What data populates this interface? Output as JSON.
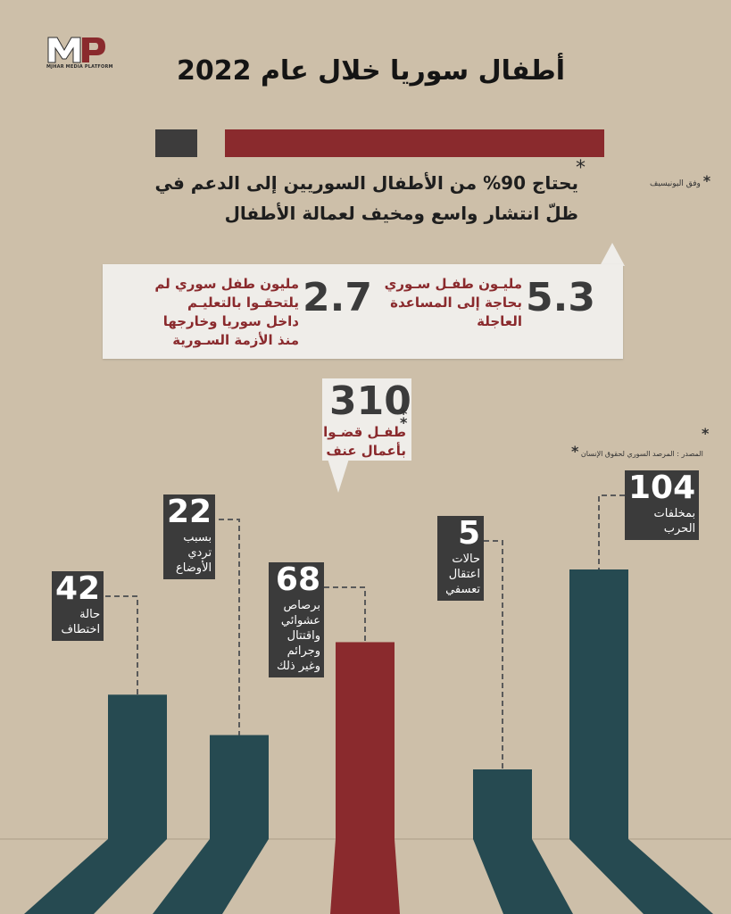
{
  "brand": {
    "logo_text": "MJHAR MEDIA PLATFORM",
    "logo_colors": [
      "#ffffff",
      "#8a2a2d"
    ]
  },
  "title": "أطفال سوريا خلال عام 2022",
  "progress": {
    "value_percent": 90,
    "fill_color": "#8a2a2d",
    "rest_color": "#3d3c3c"
  },
  "lead": {
    "line1": "يحتاج 90% من الأطفال السوريين إلى الدعم في",
    "line2": "ظلّ انتشار واسع ومخيف لعمالة الأطفال",
    "star": "*"
  },
  "notes": {
    "unicef": "وفق اليونيسيف",
    "source": "المصدر : المرصد السوري لحقوق الإنسان",
    "star": "*"
  },
  "stats": {
    "need_aid": {
      "value": "5.3",
      "text_lines": [
        "مليـون طفـل سـوري",
        "بحاجة إلى المساعدة",
        "العاجلة"
      ]
    },
    "no_school": {
      "value": "2.7",
      "text_lines": [
        "مليون طفل سوري لم",
        "يلتحقـوا بالتعليـم",
        "داخل سوريا وخارجها",
        "منذ الأزمة السـورية"
      ]
    }
  },
  "killed": {
    "value": "310",
    "text_lines": [
      "طفـل قضـوا",
      "بأعمال عنف"
    ]
  },
  "colors": {
    "teal": "#264a51",
    "red": "#8a2a2d",
    "label_bg": "#3b3b3b",
    "background": "#cdbfa9"
  },
  "chart_data": {
    "type": "bar",
    "categories": [
      "حالة اختطاف",
      "بسبب تردي الأوضاع",
      "برصاص عشوائي واقتتال وجرائم وغير ذلك",
      "حالات اعتقال تعسفي",
      "بمخلفات الحرب"
    ],
    "values": [
      42,
      22,
      68,
      5,
      104
    ],
    "label_values": [
      "42",
      "22",
      "68",
      "5",
      "104"
    ],
    "label_lines": [
      [
        "حالة",
        "اختطاف"
      ],
      [
        "بسبب",
        "تردي",
        "الأوضاع"
      ],
      [
        "برصاص",
        "عشوائي",
        "واقتتال",
        "وجرائم",
        "وغير ذلك"
      ],
      [
        "حالات",
        "اعتقال",
        "تعسفي"
      ],
      [
        "بمخلفات",
        "الحرب"
      ]
    ],
    "highlight_index": 2,
    "title": "",
    "xlabel": "",
    "ylabel": "",
    "grid": false,
    "legend": "none"
  }
}
